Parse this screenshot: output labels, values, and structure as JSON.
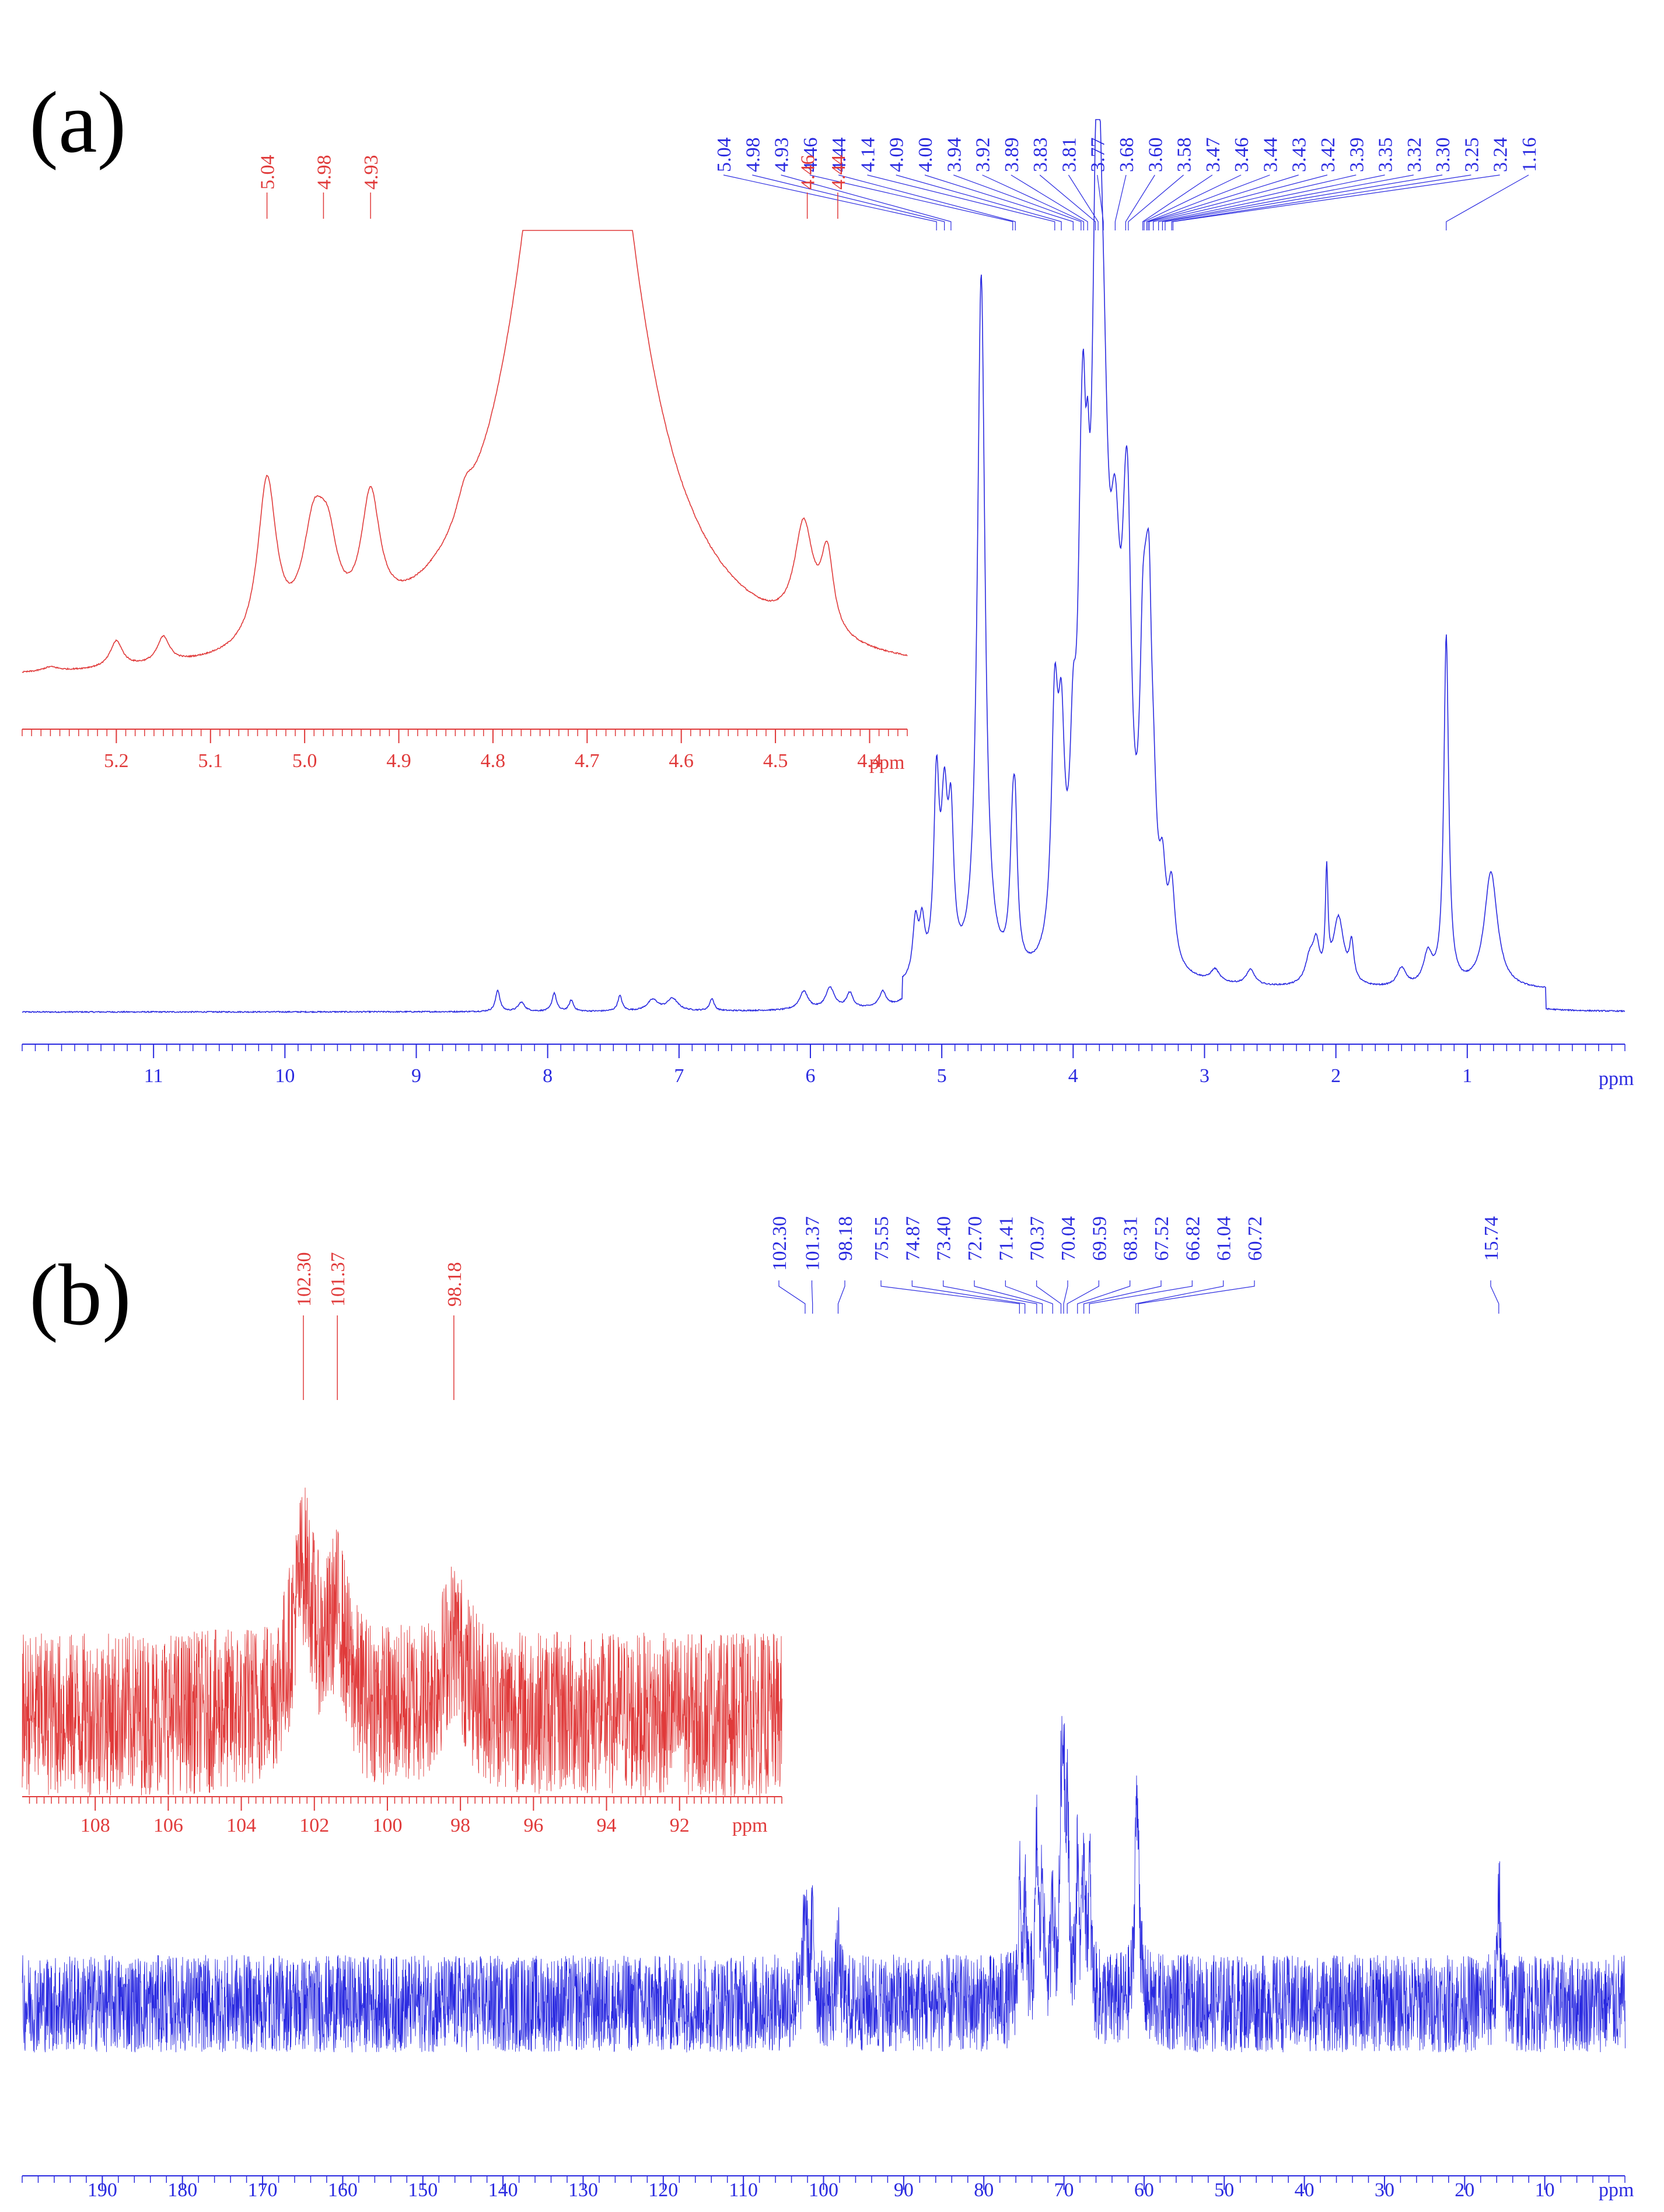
{
  "chart_data": [
    {
      "panel_label": "(a)",
      "type": "line",
      "title": "",
      "xlabel": "ppm",
      "ylabel": "",
      "x_reversed": true,
      "grid": false,
      "colors": {
        "main": "#2a2ae0",
        "inset": "#e03a3a"
      },
      "main": {
        "xlim": [
          12.0,
          -0.2
        ],
        "xticks": [
          11,
          10,
          9,
          8,
          7,
          6,
          5,
          4,
          3,
          2,
          1
        ],
        "peak_labels": [
          "5.04",
          "4.98",
          "4.93",
          "4.46",
          "4.44",
          "4.14",
          "4.09",
          "4.00",
          "3.94",
          "3.92",
          "3.89",
          "3.83",
          "3.81",
          "3.77",
          "3.68",
          "3.60",
          "3.58",
          "3.47",
          "3.46",
          "3.44",
          "3.43",
          "3.42",
          "3.39",
          "3.35",
          "3.32",
          "3.30",
          "3.25",
          "3.24",
          "1.16"
        ],
        "peaks": [
          {
            "x": 8.38,
            "h": 0.035,
            "w": 0.02
          },
          {
            "x": 8.2,
            "h": 0.015,
            "w": 0.03
          },
          {
            "x": 7.95,
            "h": 0.03,
            "w": 0.02
          },
          {
            "x": 7.82,
            "h": 0.018,
            "w": 0.02
          },
          {
            "x": 7.45,
            "h": 0.025,
            "w": 0.02
          },
          {
            "x": 7.2,
            "h": 0.018,
            "w": 0.05
          },
          {
            "x": 7.05,
            "h": 0.02,
            "w": 0.05
          },
          {
            "x": 6.75,
            "h": 0.02,
            "w": 0.02
          },
          {
            "x": 6.05,
            "h": 0.03,
            "w": 0.04
          },
          {
            "x": 5.85,
            "h": 0.035,
            "w": 0.04
          },
          {
            "x": 5.7,
            "h": 0.025,
            "w": 0.03
          },
          {
            "x": 5.45,
            "h": 0.025,
            "w": 0.03
          },
          {
            "x": 5.2,
            "h": 0.09,
            "w": 0.025
          },
          {
            "x": 5.15,
            "h": 0.08,
            "w": 0.025
          },
          {
            "x": 5.04,
            "h": 0.3,
            "w": 0.025
          },
          {
            "x": 4.98,
            "h": 0.25,
            "w": 0.03
          },
          {
            "x": 4.93,
            "h": 0.22,
            "w": 0.025
          },
          {
            "x": 4.7,
            "h": 1.15,
            "w": 0.035
          },
          {
            "x": 4.46,
            "h": 0.2,
            "w": 0.025
          },
          {
            "x": 4.44,
            "h": 0.17,
            "w": 0.02
          },
          {
            "x": 4.14,
            "h": 0.38,
            "w": 0.03
          },
          {
            "x": 4.09,
            "h": 0.3,
            "w": 0.03
          },
          {
            "x": 4.0,
            "h": 0.25,
            "w": 0.03
          },
          {
            "x": 3.94,
            "h": 0.48,
            "w": 0.03
          },
          {
            "x": 3.92,
            "h": 0.32,
            "w": 0.02
          },
          {
            "x": 3.89,
            "h": 0.3,
            "w": 0.02
          },
          {
            "x": 3.83,
            "h": 0.55,
            "w": 0.04
          },
          {
            "x": 3.81,
            "h": 0.6,
            "w": 0.04
          },
          {
            "x": 3.77,
            "h": 0.55,
            "w": 0.05
          },
          {
            "x": 3.68,
            "h": 0.48,
            "w": 0.05
          },
          {
            "x": 3.6,
            "h": 0.42,
            "w": 0.04
          },
          {
            "x": 3.58,
            "h": 0.28,
            "w": 0.03
          },
          {
            "x": 3.47,
            "h": 0.35,
            "w": 0.03
          },
          {
            "x": 3.44,
            "h": 0.3,
            "w": 0.03
          },
          {
            "x": 3.42,
            "h": 0.25,
            "w": 0.02
          },
          {
            "x": 3.39,
            "h": 0.18,
            "w": 0.03
          },
          {
            "x": 3.32,
            "h": 0.12,
            "w": 0.03
          },
          {
            "x": 3.25,
            "h": 0.12,
            "w": 0.03
          },
          {
            "x": 2.92,
            "h": 0.02,
            "w": 0.04
          },
          {
            "x": 2.65,
            "h": 0.025,
            "w": 0.04
          },
          {
            "x": 2.2,
            "h": 0.04,
            "w": 0.04
          },
          {
            "x": 2.15,
            "h": 0.06,
            "w": 0.03
          },
          {
            "x": 2.07,
            "h": 0.17,
            "w": 0.012
          },
          {
            "x": 1.98,
            "h": 0.11,
            "w": 0.05
          },
          {
            "x": 1.88,
            "h": 0.06,
            "w": 0.02
          },
          {
            "x": 1.5,
            "h": 0.03,
            "w": 0.04
          },
          {
            "x": 1.3,
            "h": 0.05,
            "w": 0.04
          },
          {
            "x": 1.16,
            "h": 0.57,
            "w": 0.022
          },
          {
            "x": 0.82,
            "h": 0.19,
            "w": 0.06
          }
        ]
      },
      "inset": {
        "xlim": [
          5.3,
          4.36
        ],
        "xticks": [
          "5.2",
          "5.1",
          "5.0",
          "4.9",
          "4.8",
          "4.7",
          "4.6",
          "4.5",
          "4.4"
        ],
        "xlabel": "ppm",
        "peak_labels": [
          "5.04",
          "4.98",
          "4.93",
          "4.46",
          "4.44"
        ],
        "peaks": [
          {
            "x": 5.27,
            "h": 0.01,
            "w": 0.01
          },
          {
            "x": 5.2,
            "h": 0.06,
            "w": 0.008
          },
          {
            "x": 5.15,
            "h": 0.06,
            "w": 0.008
          },
          {
            "x": 5.04,
            "h": 0.38,
            "w": 0.012
          },
          {
            "x": 4.99,
            "h": 0.24,
            "w": 0.015
          },
          {
            "x": 4.975,
            "h": 0.15,
            "w": 0.012
          },
          {
            "x": 4.93,
            "h": 0.28,
            "w": 0.012
          },
          {
            "x": 4.83,
            "h": 0.06,
            "w": 0.01
          },
          {
            "x": 4.71,
            "h": 2.0,
            "w": 0.06
          },
          {
            "x": 4.47,
            "h": 0.24,
            "w": 0.012
          },
          {
            "x": 4.445,
            "h": 0.18,
            "w": 0.008
          }
        ]
      }
    },
    {
      "panel_label": "(b)",
      "type": "line",
      "title": "",
      "xlabel": "ppm",
      "ylabel": "",
      "x_reversed": true,
      "grid": false,
      "colors": {
        "main": "#2a2ae0",
        "inset": "#e03a3a"
      },
      "main": {
        "xlim": [
          200,
          0
        ],
        "xticks": [
          190,
          180,
          170,
          160,
          150,
          140,
          130,
          120,
          110,
          100,
          90,
          80,
          70,
          60,
          50,
          40,
          30,
          20,
          10
        ],
        "peak_labels": [
          "102.30",
          "101.37",
          "98.18",
          "75.55",
          "74.87",
          "73.40",
          "72.70",
          "71.41",
          "70.37",
          "70.04",
          "69.59",
          "68.31",
          "67.52",
          "66.82",
          "61.04",
          "60.72",
          "15.74"
        ],
        "peaks": [
          {
            "x": 102.3,
            "h": 0.45,
            "w": 0.25
          },
          {
            "x": 101.37,
            "h": 0.35,
            "w": 0.25
          },
          {
            "x": 98.18,
            "h": 0.22,
            "w": 0.25
          },
          {
            "x": 75.55,
            "h": 0.5,
            "w": 0.2
          },
          {
            "x": 74.87,
            "h": 0.4,
            "w": 0.2
          },
          {
            "x": 73.4,
            "h": 0.7,
            "w": 0.2
          },
          {
            "x": 72.7,
            "h": 0.55,
            "w": 0.2
          },
          {
            "x": 71.41,
            "h": 0.5,
            "w": 0.2
          },
          {
            "x": 70.37,
            "h": 0.75,
            "w": 0.2
          },
          {
            "x": 70.04,
            "h": 0.9,
            "w": 0.2
          },
          {
            "x": 69.59,
            "h": 0.8,
            "w": 0.2
          },
          {
            "x": 68.31,
            "h": 0.6,
            "w": 0.2
          },
          {
            "x": 67.52,
            "h": 0.65,
            "w": 0.2
          },
          {
            "x": 66.82,
            "h": 0.55,
            "w": 0.2
          },
          {
            "x": 61.04,
            "h": 0.72,
            "w": 0.2
          },
          {
            "x": 60.72,
            "h": 0.6,
            "w": 0.2
          },
          {
            "x": 15.74,
            "h": 0.62,
            "w": 0.15
          }
        ],
        "noise": 0.22
      },
      "inset": {
        "xlim": [
          110,
          89.2
        ],
        "xticks": [
          "108",
          "106",
          "104",
          "102",
          "100",
          "98",
          "96",
          "94",
          "92"
        ],
        "xlabel": "ppm",
        "peak_labels": [
          "102.30",
          "101.37",
          "98.18"
        ],
        "peaks": [
          {
            "x": 102.3,
            "h": 0.95,
            "w": 0.35
          },
          {
            "x": 101.37,
            "h": 0.6,
            "w": 0.3
          },
          {
            "x": 98.18,
            "h": 0.5,
            "w": 0.4
          }
        ],
        "noise": 0.55
      }
    }
  ]
}
